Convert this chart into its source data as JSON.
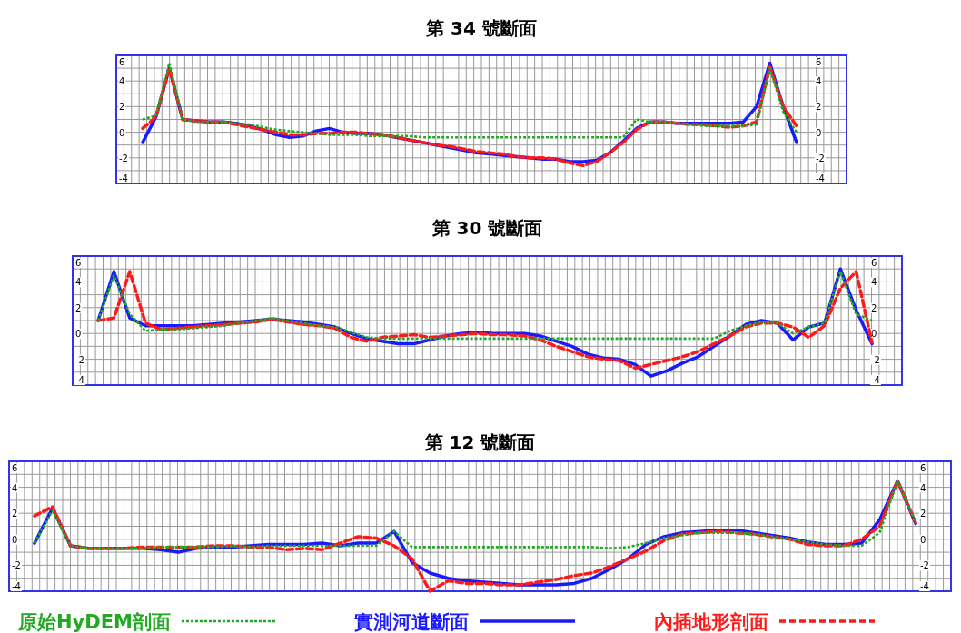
{
  "chart_data": [
    {
      "type": "line",
      "title": "第 34 號斷面",
      "categories": [
        null,
        null,
        null,
        null,
        null,
        null,
        null,
        null,
        null,
        null,
        null,
        null,
        null,
        null,
        null,
        null,
        null,
        null,
        null,
        null,
        null,
        null,
        null,
        null,
        null,
        null,
        null,
        null,
        null,
        null,
        null,
        null,
        null,
        null,
        null,
        null,
        null,
        null,
        null,
        null,
        null,
        null,
        null,
        null,
        null,
        null,
        null,
        null,
        null,
        null
      ],
      "ylim": [
        -4,
        6
      ],
      "yticks": [
        -4,
        -2,
        0,
        2,
        4,
        6
      ],
      "y2lim": [
        -4,
        6
      ],
      "y2ticks": [
        -4,
        -2,
        0,
        2,
        4,
        6
      ],
      "grid": true,
      "series": [
        {
          "color": "#22a822",
          "line_style": "dotted",
          "values": [
            1.0,
            1.3,
            5.4,
            1.0,
            0.8,
            0.8,
            0.8,
            0.7,
            0.6,
            0.4,
            0.2,
            0.1,
            0.0,
            -0.1,
            -0.2,
            -0.2,
            -0.2,
            -0.3,
            -0.3,
            -0.3,
            -0.3,
            -0.4,
            -0.4,
            -0.4,
            -0.4,
            -0.4,
            -0.4,
            -0.4,
            -0.4,
            -0.4,
            -0.4,
            -0.4,
            -0.4,
            -0.4,
            -0.4,
            -0.4,
            -0.4,
            1.0,
            0.8,
            0.8,
            0.7,
            0.6,
            0.5,
            0.5,
            0.5,
            0.5,
            0.6,
            5.0,
            1.6,
            0.0
          ]
        },
        {
          "color": "#1a1aff",
          "line_style": "solid",
          "values": [
            -0.8,
            1.2,
            5.0,
            1.0,
            0.9,
            0.8,
            0.8,
            0.7,
            0.5,
            0.2,
            -0.2,
            -0.4,
            -0.3,
            0.1,
            0.3,
            0.0,
            -0.1,
            -0.1,
            -0.2,
            -0.4,
            -0.6,
            -0.8,
            -1.0,
            -1.2,
            -1.4,
            -1.6,
            -1.7,
            -1.8,
            -1.9,
            -2.0,
            -2.1,
            -2.1,
            -2.3,
            -2.3,
            -2.2,
            -1.6,
            -0.7,
            0.3,
            0.8,
            0.8,
            0.7,
            0.7,
            0.7,
            0.7,
            0.7,
            0.8,
            2.0,
            5.4,
            2.0,
            -0.8
          ]
        },
        {
          "color": "#ff1a1a",
          "line_style": "dashed",
          "values": [
            0.3,
            1.2,
            5.0,
            1.0,
            0.9,
            0.8,
            0.8,
            0.6,
            0.4,
            0.2,
            0.0,
            -0.2,
            -0.2,
            -0.1,
            -0.1,
            0.0,
            0.0,
            -0.1,
            -0.2,
            -0.4,
            -0.6,
            -0.8,
            -1.0,
            -1.1,
            -1.3,
            -1.5,
            -1.6,
            -1.7,
            -1.9,
            -2.0,
            -2.0,
            -2.1,
            -2.4,
            -2.6,
            -2.3,
            -1.6,
            -0.8,
            0.2,
            0.8,
            0.8,
            0.7,
            0.6,
            0.6,
            0.5,
            0.4,
            0.5,
            0.8,
            5.1,
            2.0,
            0.5
          ]
        }
      ]
    },
    {
      "type": "line",
      "title": "第 30 號斷面",
      "categories": [
        null,
        null,
        null,
        null,
        null,
        null,
        null,
        null,
        null,
        null,
        null,
        null,
        null,
        null,
        null,
        null,
        null,
        null,
        null,
        null,
        null,
        null,
        null,
        null,
        null,
        null,
        null,
        null,
        null,
        null,
        null,
        null,
        null,
        null,
        null,
        null,
        null,
        null,
        null,
        null,
        null,
        null,
        null,
        null,
        null,
        null,
        null,
        null,
        null,
        null
      ],
      "ylim": [
        -4,
        6
      ],
      "yticks": [
        -4,
        -2,
        0,
        2,
        4,
        6
      ],
      "y2lim": [
        -4,
        6
      ],
      "y2ticks": [
        -4,
        -2,
        0,
        2,
        4,
        6
      ],
      "grid": true,
      "series": [
        {
          "color": "#22a822",
          "line_style": "dotted",
          "values": [
            1.0,
            4.5,
            1.5,
            0.2,
            0.3,
            0.3,
            0.4,
            0.5,
            0.6,
            0.8,
            1.0,
            1.2,
            1.0,
            0.8,
            0.6,
            0.5,
            0.1,
            -0.3,
            -0.4,
            -0.4,
            -0.4,
            -0.4,
            -0.4,
            -0.4,
            -0.4,
            -0.4,
            -0.4,
            -0.4,
            -0.4,
            -0.4,
            -0.4,
            -0.4,
            -0.4,
            -0.4,
            -0.4,
            -0.4,
            -0.4,
            -0.4,
            -0.4,
            -0.4,
            0.2,
            0.6,
            0.9,
            0.8,
            0.0,
            0.5,
            0.8,
            4.8,
            1.5,
            1.0
          ]
        },
        {
          "color": "#1a1aff",
          "line_style": "solid",
          "values": [
            1.0,
            4.8,
            1.2,
            0.6,
            0.6,
            0.6,
            0.6,
            0.7,
            0.8,
            0.9,
            1.0,
            1.1,
            1.0,
            0.9,
            0.7,
            0.5,
            0.0,
            -0.4,
            -0.6,
            -0.8,
            -0.8,
            -0.5,
            -0.2,
            0.0,
            0.1,
            0.0,
            0.0,
            0.0,
            -0.2,
            -0.6,
            -1.0,
            -1.6,
            -1.9,
            -2.0,
            -2.4,
            -3.3,
            -2.9,
            -2.3,
            -1.8,
            -1.0,
            -0.2,
            0.7,
            1.0,
            0.8,
            -0.5,
            0.5,
            0.8,
            5.0,
            1.8,
            -0.8
          ]
        },
        {
          "color": "#ff1a1a",
          "line_style": "dashed",
          "values": [
            1.0,
            1.2,
            4.8,
            0.8,
            0.3,
            0.4,
            0.5,
            0.6,
            0.7,
            0.8,
            0.9,
            1.1,
            0.9,
            0.7,
            0.6,
            0.4,
            -0.3,
            -0.6,
            -0.3,
            -0.2,
            -0.1,
            -0.3,
            -0.2,
            -0.1,
            0.0,
            -0.1,
            -0.1,
            -0.2,
            -0.5,
            -1.0,
            -1.4,
            -1.8,
            -2.0,
            -2.1,
            -2.7,
            -2.4,
            -2.1,
            -1.8,
            -1.4,
            -0.8,
            -0.2,
            0.5,
            0.8,
            0.8,
            0.5,
            -0.3,
            0.6,
            3.5,
            4.8,
            -0.7
          ]
        }
      ]
    },
    {
      "type": "line",
      "title": "第 12 號斷面",
      "categories": [
        null,
        null,
        null,
        null,
        null,
        null,
        null,
        null,
        null,
        null,
        null,
        null,
        null,
        null,
        null,
        null,
        null,
        null,
        null,
        null,
        null,
        null,
        null,
        null,
        null,
        null,
        null,
        null,
        null,
        null,
        null,
        null,
        null,
        null,
        null,
        null,
        null,
        null,
        null,
        null,
        null,
        null,
        null,
        null,
        null,
        null,
        null,
        null,
        null,
        null
      ],
      "ylim": [
        -4,
        6
      ],
      "yticks": [
        -4,
        -2,
        0,
        2,
        4,
        6
      ],
      "y2lim": [
        -4,
        6
      ],
      "y2ticks": [
        -4,
        -2,
        0,
        2,
        4,
        6
      ],
      "grid": true,
      "legend": "bottom",
      "series": [
        {
          "name": "原始HyDEM剖面",
          "color": "#22a822",
          "line_style": "dotted",
          "values": [
            -0.3,
            2.2,
            -0.5,
            -0.7,
            -0.7,
            -0.7,
            -0.7,
            -0.6,
            -0.6,
            -0.6,
            -0.6,
            -0.5,
            -0.6,
            -0.5,
            -0.5,
            -0.5,
            -0.5,
            -0.5,
            -0.5,
            -0.5,
            0.6,
            -0.6,
            -0.6,
            -0.6,
            -0.6,
            -0.6,
            -0.6,
            -0.6,
            -0.6,
            -0.6,
            -0.6,
            -0.6,
            -0.7,
            -0.6,
            -0.3,
            0.1,
            0.3,
            0.5,
            0.5,
            0.5,
            0.4,
            0.2,
            0.0,
            -0.2,
            -0.4,
            -0.5,
            -0.5,
            0.5,
            4.5,
            1.3
          ]
        },
        {
          "name": "實測河道斷面",
          "color": "#1a1aff",
          "line_style": "solid",
          "values": [
            -0.3,
            2.4,
            -0.5,
            -0.7,
            -0.7,
            -0.7,
            -0.7,
            -0.8,
            -1.0,
            -0.7,
            -0.6,
            -0.6,
            -0.5,
            -0.4,
            -0.4,
            -0.4,
            -0.3,
            -0.5,
            -0.3,
            -0.3,
            0.6,
            -1.8,
            -2.6,
            -3.0,
            -3.2,
            -3.3,
            -3.4,
            -3.5,
            -3.5,
            -3.5,
            -3.4,
            -3.0,
            -2.3,
            -1.5,
            -0.4,
            0.2,
            0.5,
            0.6,
            0.7,
            0.7,
            0.5,
            0.3,
            0.1,
            -0.2,
            -0.4,
            -0.4,
            -0.3,
            1.5,
            4.5,
            1.2
          ]
        },
        {
          "name": "內插地形剖面",
          "color": "#ff1a1a",
          "line_style": "dashed",
          "values": [
            1.8,
            2.5,
            -0.5,
            -0.7,
            -0.7,
            -0.7,
            -0.6,
            -0.6,
            -0.6,
            -0.6,
            -0.5,
            -0.5,
            -0.6,
            -0.6,
            -0.8,
            -0.7,
            -0.8,
            -0.3,
            0.2,
            0.1,
            -0.5,
            -1.5,
            -4.0,
            -3.2,
            -3.4,
            -3.4,
            -3.5,
            -3.5,
            -3.3,
            -3.1,
            -2.8,
            -2.6,
            -2.1,
            -1.5,
            -0.9,
            -0.1,
            0.4,
            0.5,
            0.6,
            0.5,
            0.4,
            0.2,
            0.0,
            -0.4,
            -0.5,
            -0.5,
            0.0,
            1.0,
            4.5,
            1.3
          ]
        }
      ]
    }
  ]
}
